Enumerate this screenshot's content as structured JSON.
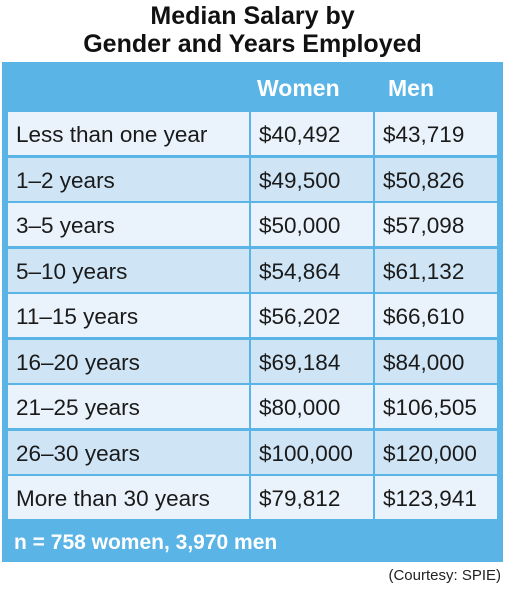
{
  "chart_data": {
    "type": "table",
    "title_line1": "Median Salary by",
    "title_line2": "Gender and Years Employed",
    "columns": [
      "",
      "Women",
      "Men"
    ],
    "rows": [
      {
        "label": "Less than one year",
        "women": "$40,492",
        "men": "$43,719"
      },
      {
        "label": "1–2 years",
        "women": "$49,500",
        "men": "$50,826"
      },
      {
        "label": "3–5 years",
        "women": "$50,000",
        "men": "$57,098"
      },
      {
        "label": "5–10 years",
        "women": "$54,864",
        "men": "$61,132"
      },
      {
        "label": "11–15 years",
        "women": "$56,202",
        "men": "$66,610"
      },
      {
        "label": "16–20 years",
        "women": "$69,184",
        "men": "$84,000"
      },
      {
        "label": "21–25 years",
        "women": "$80,000",
        "men": "$106,505"
      },
      {
        "label": "26–30 years",
        "women": "$100,000",
        "men": "$120,000"
      },
      {
        "label": "More than 30 years",
        "women": "$79,812",
        "men": "$123,941"
      }
    ],
    "footnote": "n = 758 women, 3,970 men",
    "source": "(Courtesy: SPIE)",
    "colors": {
      "frame": "#5ab4e5",
      "row_light": "#eaf3fb",
      "row_dark": "#cfe5f6",
      "header_text": "#ffffff"
    }
  }
}
